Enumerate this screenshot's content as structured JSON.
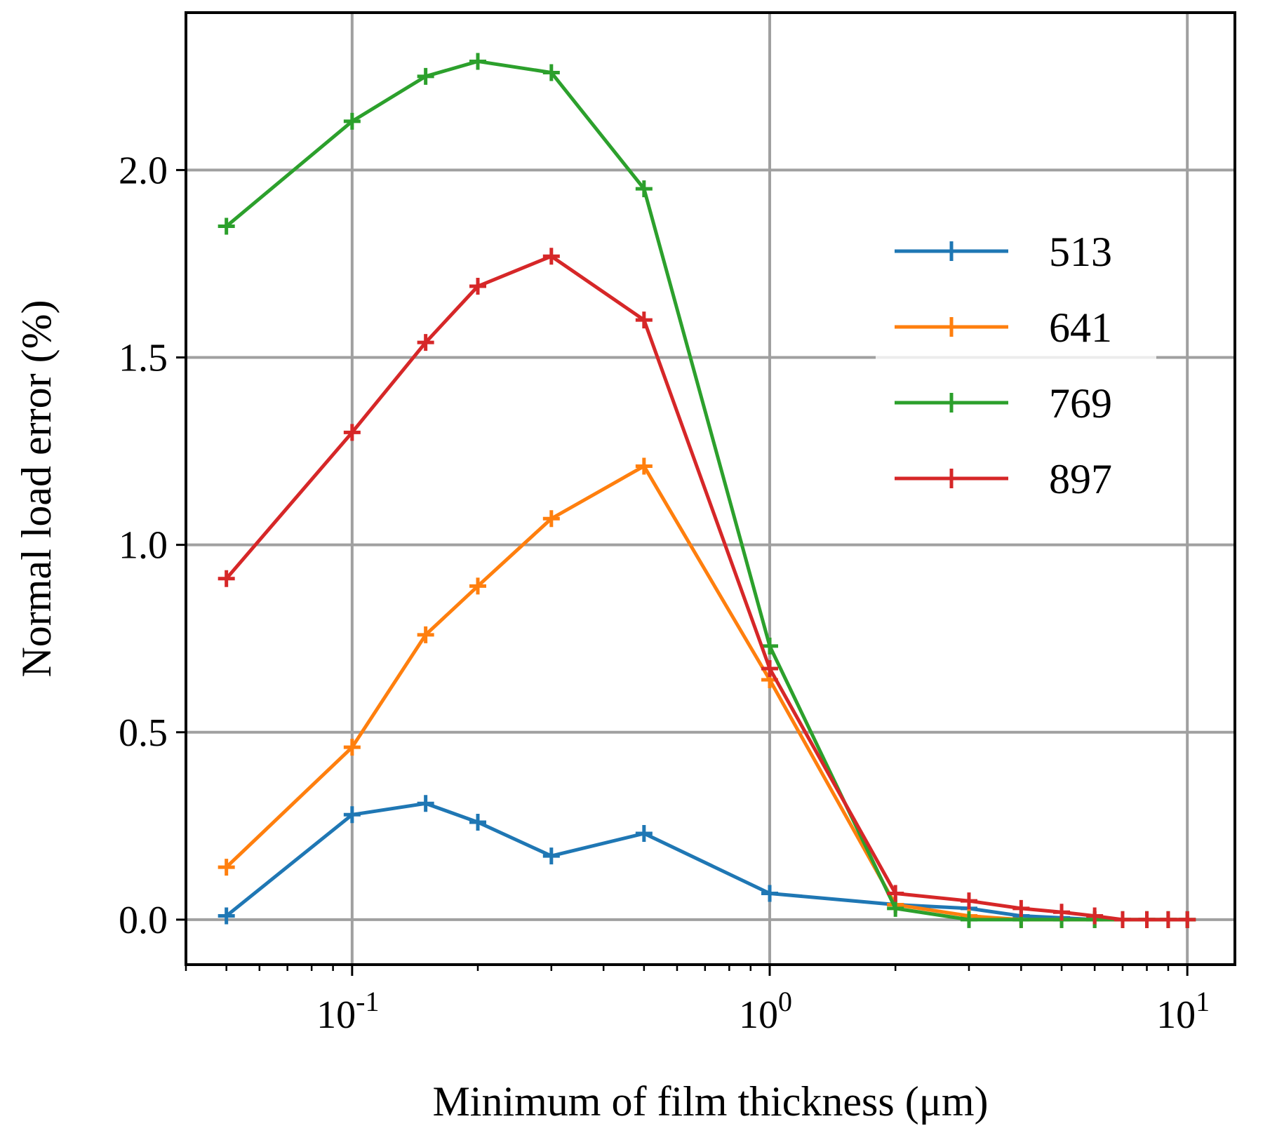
{
  "chart_data": {
    "type": "line",
    "xscale": "log",
    "xlabel": "Minimum of film thickness (μm)",
    "ylabel": "Normal load error (%)",
    "xlim": [
      0.04,
      13
    ],
    "ylim": [
      -0.12,
      2.42
    ],
    "grid": true,
    "legend_position": "right",
    "x_ticks": [
      {
        "value": 0.1,
        "base": "10",
        "exp": "-1"
      },
      {
        "value": 1,
        "base": "10",
        "exp": "0"
      },
      {
        "value": 10,
        "base": "10",
        "exp": "1"
      }
    ],
    "y_ticks": [
      {
        "value": 0.0,
        "label": "0.0"
      },
      {
        "value": 0.5,
        "label": "0.5"
      },
      {
        "value": 1.0,
        "label": "1.0"
      },
      {
        "value": 1.5,
        "label": "1.5"
      },
      {
        "value": 2.0,
        "label": "2.0"
      }
    ],
    "x": [
      0.05,
      0.1,
      0.15,
      0.2,
      0.3,
      0.5,
      1,
      2,
      3,
      4,
      5,
      6,
      7,
      8,
      9,
      10
    ],
    "series": [
      {
        "name": "513",
        "color": "#1f77b4",
        "values": [
          0.01,
          0.28,
          0.31,
          0.26,
          0.17,
          0.23,
          0.07,
          0.04,
          0.03,
          0.01,
          0.005,
          0.0,
          0.0,
          0.0,
          0.0,
          0.0
        ]
      },
      {
        "name": "641",
        "color": "#ff7f0e",
        "values": [
          0.14,
          0.46,
          0.76,
          0.89,
          1.07,
          1.21,
          0.64,
          0.04,
          0.01,
          0.0,
          0.0,
          0.0,
          0.0,
          0.0,
          0.0,
          0.0
        ]
      },
      {
        "name": "769",
        "color": "#2ca02c",
        "values": [
          1.85,
          2.13,
          2.25,
          2.29,
          2.26,
          1.95,
          0.73,
          0.03,
          0.0,
          0.0,
          0.0,
          0.0,
          0.0,
          0.0,
          0.0,
          0.0
        ]
      },
      {
        "name": "897",
        "color": "#d62728",
        "values": [
          0.91,
          1.3,
          1.54,
          1.69,
          1.77,
          1.6,
          0.67,
          0.07,
          0.05,
          0.03,
          0.02,
          0.01,
          0.0,
          0.0,
          0.0,
          0.0
        ]
      }
    ]
  }
}
